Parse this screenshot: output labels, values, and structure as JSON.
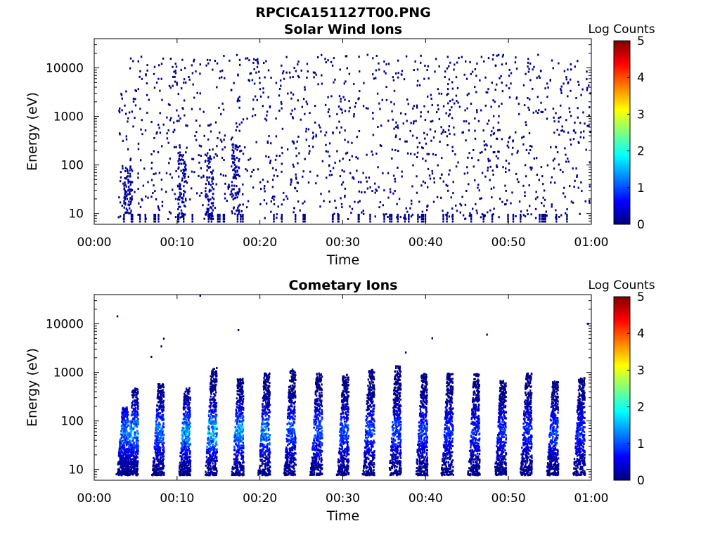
{
  "figure": {
    "filename": "RPCICA151127T00.PNG"
  },
  "chart_data": [
    {
      "type": "heatmap",
      "title": "Solar Wind Ions",
      "xlabel": "Time",
      "ylabel": "Energy (eV)",
      "x_ticks": [
        "00:00",
        "00:10",
        "00:20",
        "00:30",
        "00:40",
        "00:50",
        "01:00"
      ],
      "xlim_minutes": [
        0,
        60
      ],
      "y_scale": "log",
      "y_ticks": [
        "10",
        "100",
        "1000",
        "10000"
      ],
      "ylim_eV": [
        6,
        40000
      ],
      "colorbar": {
        "label": "Log Counts",
        "range": [
          0,
          5
        ],
        "ticks": [
          "0",
          "1",
          "2",
          "3",
          "4",
          "5"
        ],
        "colormap": "jet"
      },
      "grid": false,
      "description_of_data": "sparse single-count (log ~0) detections across all energies from ~00:03 to 01:00; denser clusters 10-300 eV near 00:10-00:18",
      "dense_clusters": [
        {
          "t_min": 10.5,
          "e_lo": 8,
          "e_hi": 200,
          "level": 0.1
        },
        {
          "t_min": 13.8,
          "e_lo": 8,
          "e_hi": 200,
          "level": 0.1
        },
        {
          "t_min": 17.0,
          "e_lo": 10,
          "e_hi": 300,
          "level": 0.1
        },
        {
          "t_min": 4.0,
          "e_lo": 10,
          "e_hi": 100,
          "level": 0.05
        }
      ]
    },
    {
      "type": "heatmap",
      "title": "Cometary Ions",
      "xlabel": "Time",
      "ylabel": "Energy (eV)",
      "x_ticks": [
        "00:00",
        "00:10",
        "00:20",
        "00:30",
        "00:40",
        "00:50",
        "01:00"
      ],
      "xlim_minutes": [
        0,
        60
      ],
      "y_scale": "log",
      "y_ticks": [
        "10",
        "100",
        "1000",
        "10000"
      ],
      "ylim_eV": [
        6,
        40000
      ],
      "colorbar": {
        "label": "Log Counts",
        "range": [
          0,
          5
        ],
        "ticks": [
          "0",
          "1",
          "2",
          "3",
          "4",
          "5"
        ],
        "colormap": "jet"
      },
      "grid": false,
      "description_of_data": "periodic vertical bursts every ~3.1 min between ~8 eV and ~1000 eV, peak intensity log counts ~1-2 in the early bursts",
      "bursts": [
        {
          "t_min": 3.3,
          "e_lo": 8,
          "e_hi": 200,
          "peak": 1.5
        },
        {
          "t_min": 4.5,
          "e_lo": 8,
          "e_hi": 500,
          "peak": 1.7
        },
        {
          "t_min": 7.6,
          "e_lo": 8,
          "e_hi": 600,
          "peak": 1.4
        },
        {
          "t_min": 10.8,
          "e_lo": 8,
          "e_hi": 500,
          "peak": 1.8
        },
        {
          "t_min": 14.0,
          "e_lo": 8,
          "e_hi": 1300,
          "peak": 2.0
        },
        {
          "t_min": 17.2,
          "e_lo": 8,
          "e_hi": 800,
          "peak": 1.8
        },
        {
          "t_min": 20.4,
          "e_lo": 8,
          "e_hi": 1000,
          "peak": 1.6
        },
        {
          "t_min": 23.5,
          "e_lo": 8,
          "e_hi": 1200,
          "peak": 1.3
        },
        {
          "t_min": 26.7,
          "e_lo": 8,
          "e_hi": 1000,
          "peak": 1.3
        },
        {
          "t_min": 29.9,
          "e_lo": 8,
          "e_hi": 1000,
          "peak": 1.3
        },
        {
          "t_min": 33.0,
          "e_lo": 8,
          "e_hi": 1200,
          "peak": 1.2
        },
        {
          "t_min": 36.2,
          "e_lo": 8,
          "e_hi": 1500,
          "peak": 1.2
        },
        {
          "t_min": 39.4,
          "e_lo": 8,
          "e_hi": 1000,
          "peak": 1.1
        },
        {
          "t_min": 42.5,
          "e_lo": 8,
          "e_hi": 1000,
          "peak": 1.0
        },
        {
          "t_min": 45.7,
          "e_lo": 8,
          "e_hi": 1000,
          "peak": 1.0
        },
        {
          "t_min": 48.9,
          "e_lo": 8,
          "e_hi": 700,
          "peak": 1.0
        },
        {
          "t_min": 52.0,
          "e_lo": 8,
          "e_hi": 1000,
          "peak": 1.0
        },
        {
          "t_min": 55.2,
          "e_lo": 8,
          "e_hi": 700,
          "peak": 1.2
        },
        {
          "t_min": 58.4,
          "e_lo": 8,
          "e_hi": 800,
          "peak": 1.0
        }
      ]
    }
  ]
}
